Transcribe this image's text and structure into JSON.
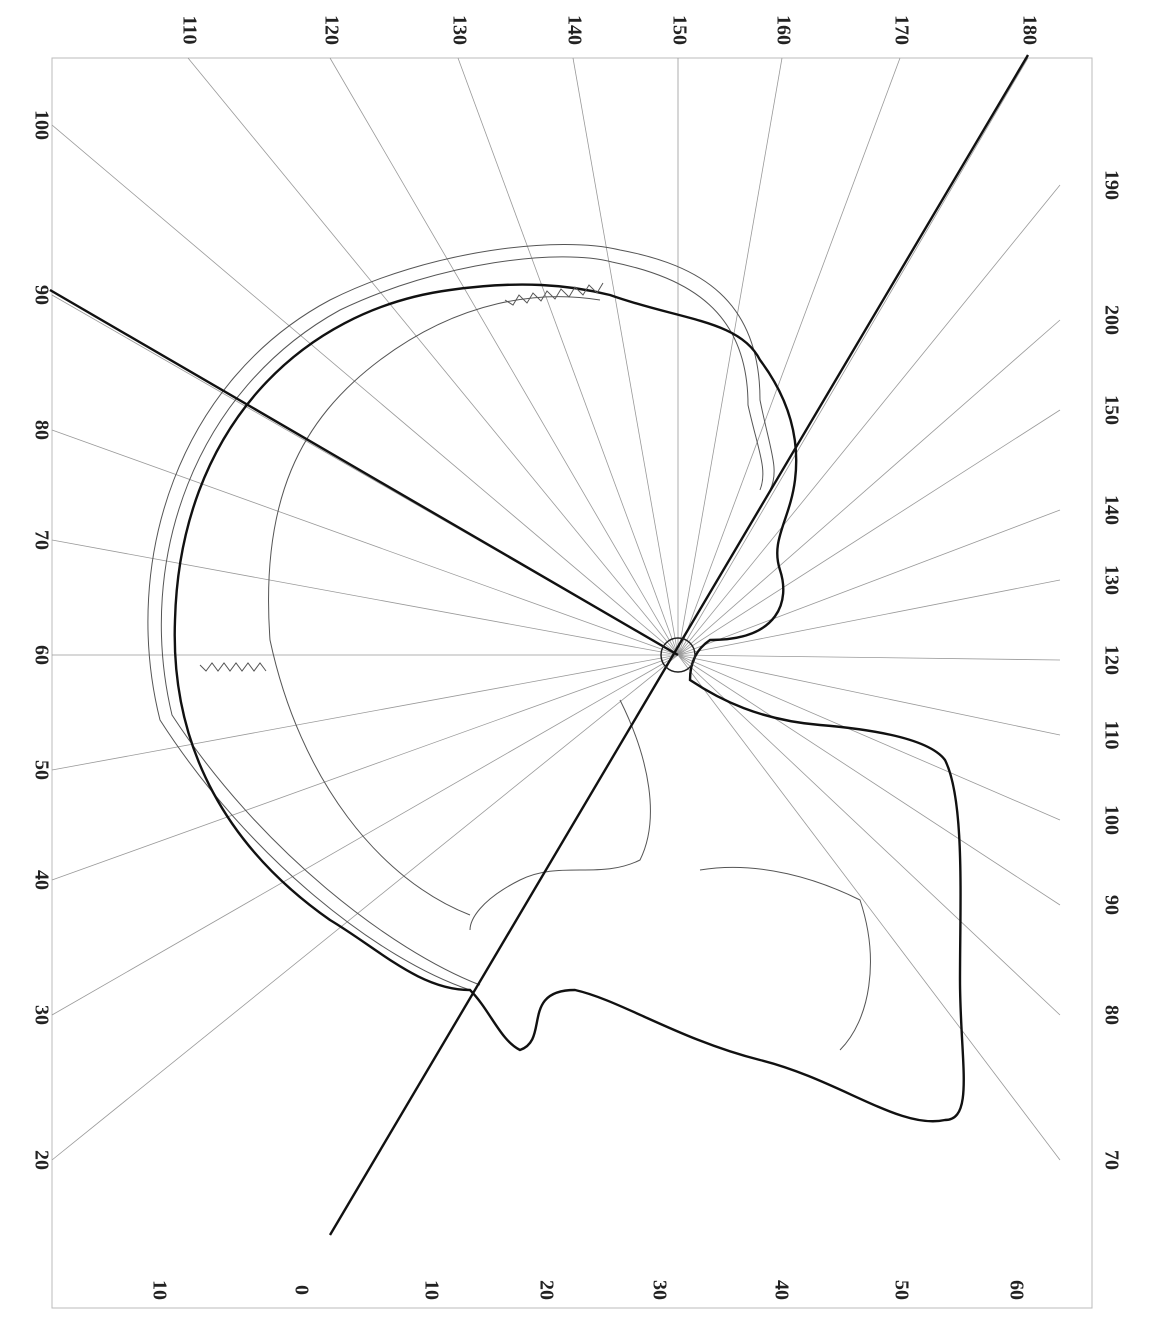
{
  "scales": {
    "top": [
      "110",
      "120",
      "130",
      "140",
      "150",
      "160",
      "170",
      "180"
    ],
    "left": [
      "100",
      "90",
      "80",
      "70",
      "60",
      "50",
      "40",
      "30",
      "20"
    ],
    "right": [
      "190",
      "200",
      "150",
      "140",
      "130",
      "120",
      "110",
      "100",
      "90",
      "80",
      "70"
    ],
    "bottom": [
      "10",
      "0",
      "10",
      "20",
      "30",
      "40",
      "50",
      "60"
    ]
  }
}
